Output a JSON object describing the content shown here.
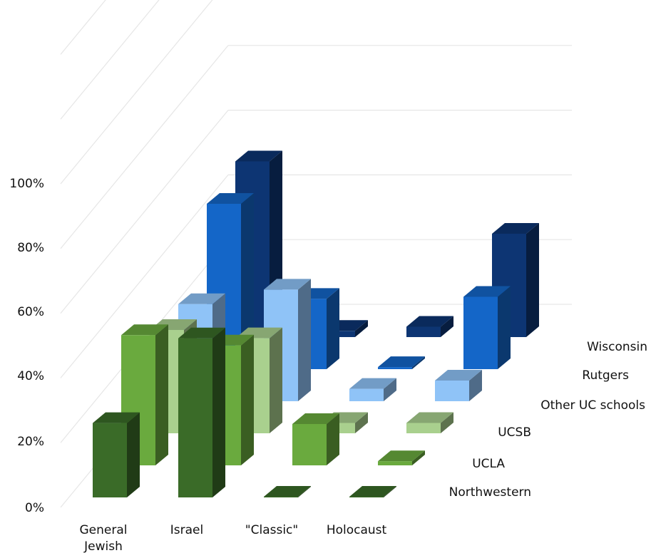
{
  "chart_data": {
    "type": "bar",
    "subtype": "3d-column",
    "title": "",
    "xlabel": "",
    "ylabel": "",
    "ylim": [
      0,
      100
    ],
    "yticks": [
      "0%",
      "20%",
      "40%",
      "60%",
      "80%",
      "100%"
    ],
    "categories": [
      "General Jewish",
      "Israel",
      "\"Classic\"",
      "Holocaust"
    ],
    "category_lines": [
      [
        "General",
        "Jewish"
      ],
      [
        "Israel"
      ],
      [
        "\"Classic\""
      ],
      [
        "Holocaust"
      ]
    ],
    "series": [
      {
        "name": "Northwestern",
        "values": [
          36,
          77,
          0,
          0
        ],
        "color": "#3a6b28"
      },
      {
        "name": "UCLA",
        "values": [
          63,
          58,
          20,
          2
        ],
        "color": "#6aaa3e"
      },
      {
        "name": "UCSB",
        "values": [
          50,
          46,
          5,
          5
        ],
        "color": "#a9d08e"
      },
      {
        "name": "Other UC schools",
        "values": [
          47,
          54,
          6,
          10
        ],
        "color": "#8fc3f7"
      },
      {
        "name": "Rutgers",
        "values": [
          80,
          34,
          1,
          35
        ],
        "color": "#1466c8"
      },
      {
        "name": "Wisconsin",
        "values": [
          85,
          3,
          5,
          50
        ],
        "color": "#0d3573"
      }
    ],
    "grid": true,
    "legend": "series labels along depth axis (right)"
  }
}
